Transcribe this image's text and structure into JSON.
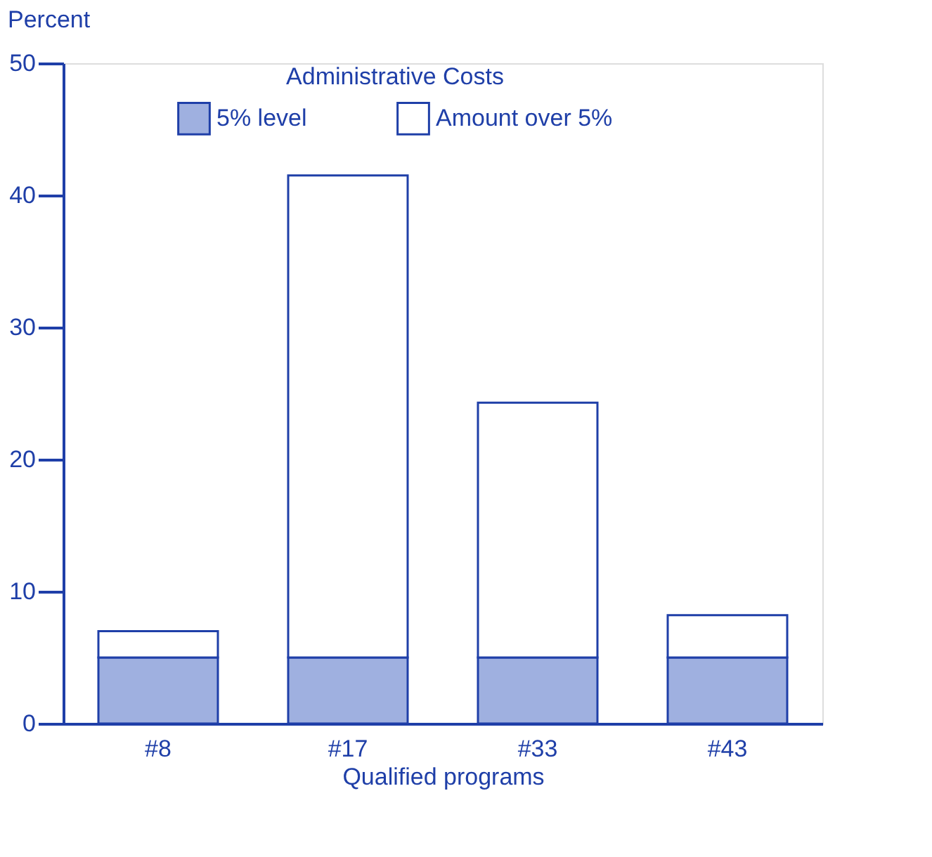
{
  "chart_data": {
    "type": "bar",
    "stacked": true,
    "legend_title": "Administrative Costs",
    "ylabel": "Percent",
    "xlabel": "Qualified programs",
    "categories": [
      "#8",
      "#17",
      "#33",
      "#43"
    ],
    "series": [
      {
        "name": "5% level",
        "color": "#9fb0e0",
        "values": [
          5,
          5,
          5,
          5
        ]
      },
      {
        "name": "Amount over 5%",
        "color": "#ffffff",
        "values": [
          2,
          36.5,
          19.3,
          3.2
        ]
      }
    ],
    "ylim": [
      0,
      50
    ],
    "yticks": [
      0,
      10,
      20,
      30,
      40,
      50
    ],
    "grid": false,
    "legend": "top"
  }
}
